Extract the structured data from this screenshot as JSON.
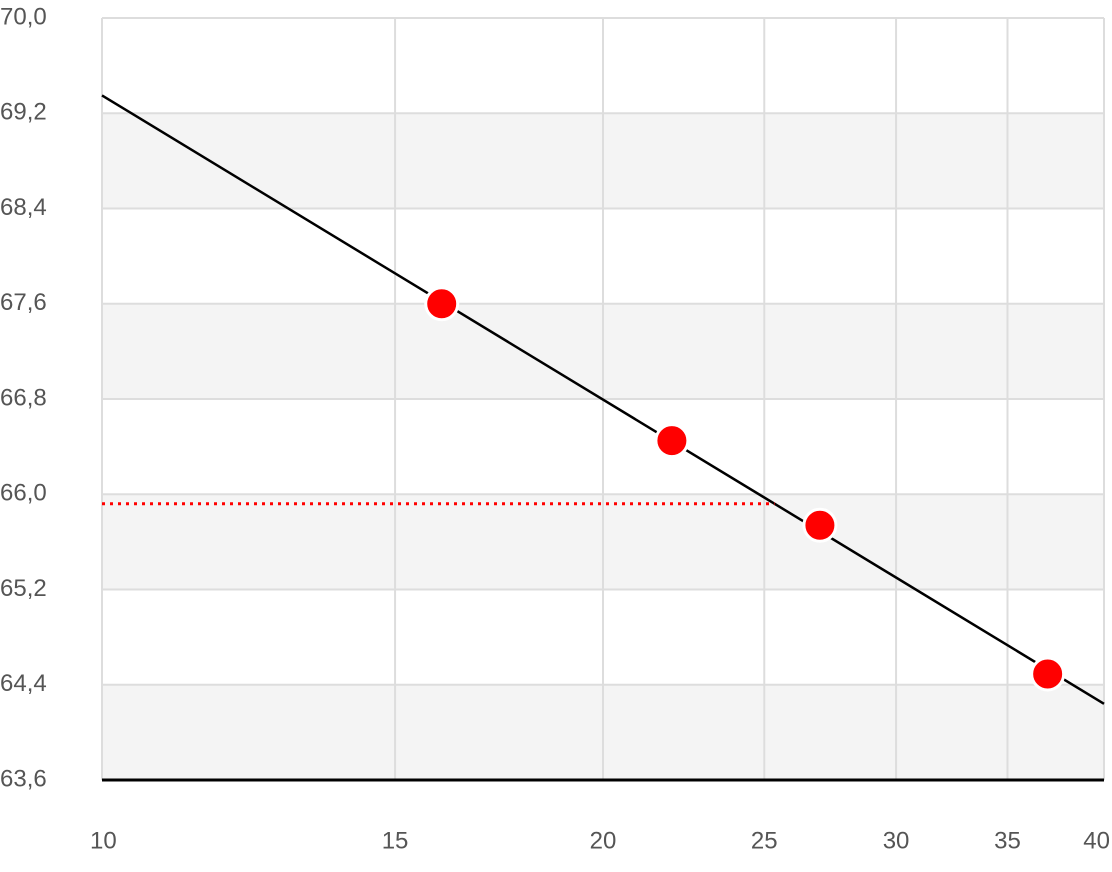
{
  "chart_data": {
    "type": "scatter",
    "xscale": "log",
    "x": [
      16,
      22,
      27,
      37
    ],
    "values": [
      67.6,
      66.45,
      65.74,
      64.49
    ],
    "color": "#ff0000",
    "trend": {
      "x": [
        10,
        40
      ],
      "values": [
        69.35,
        64.24
      ],
      "color": "#000000"
    },
    "reference_y": 65.92,
    "reference_color": "#ff0000",
    "xlim": [
      10,
      40
    ],
    "xticks": [
      10,
      15,
      20,
      25,
      30,
      35,
      40
    ],
    "ylim": [
      63.6,
      70
    ],
    "yticks": [
      {
        "value": 63.6,
        "label": "63,6"
      },
      {
        "value": 64.4,
        "label": "64,4"
      },
      {
        "value": 65.2,
        "label": "65,2"
      },
      {
        "value": 66,
        "label": "66,0"
      },
      {
        "value": 66.8,
        "label": "66,8"
      },
      {
        "value": 67.6,
        "label": "67,6"
      },
      {
        "value": 68.4,
        "label": "68,4"
      },
      {
        "value": 69.2,
        "label": "69,2"
      },
      {
        "value": 70,
        "label": "70,0"
      }
    ],
    "grid": true,
    "banded": true
  }
}
